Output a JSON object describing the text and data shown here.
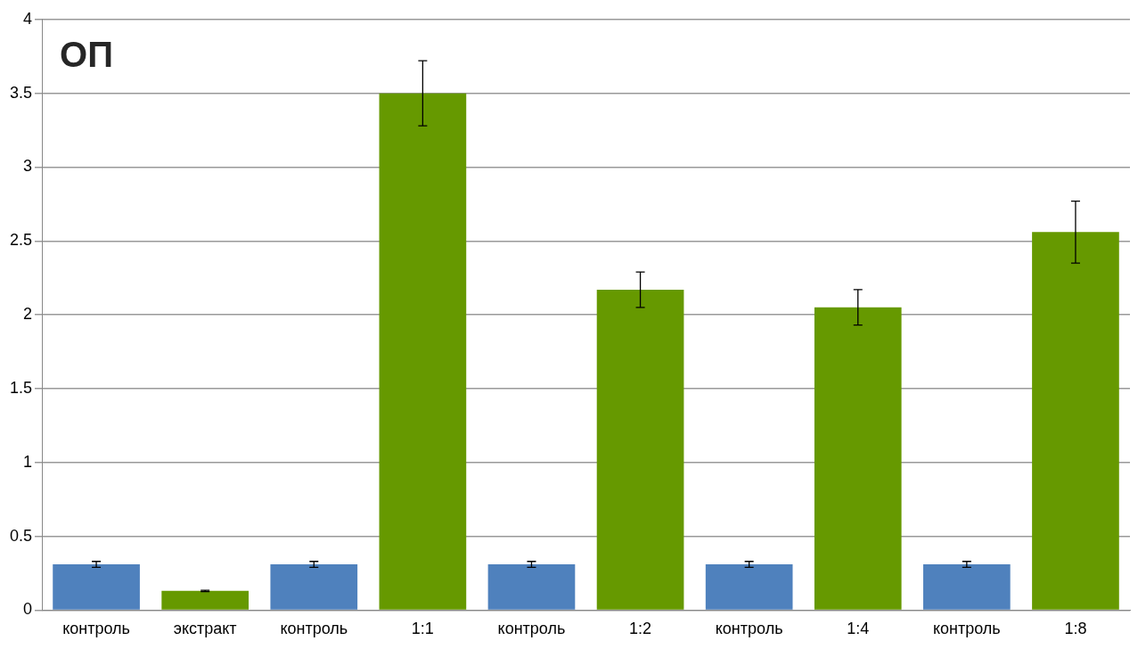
{
  "chart_data": {
    "type": "bar",
    "title": "ОП",
    "categories": [
      "контроль",
      "экстракт",
      "контроль",
      "1:1",
      "контроль",
      "1:2",
      "контроль",
      "1:4",
      "контроль",
      "1:8"
    ],
    "values": [
      0.31,
      0.13,
      0.31,
      3.5,
      0.31,
      2.17,
      0.31,
      2.05,
      0.31,
      2.56
    ],
    "errors": [
      0.02,
      0.005,
      0.02,
      0.22,
      0.02,
      0.12,
      0.02,
      0.12,
      0.02,
      0.21
    ],
    "colors": [
      "#4f81bd",
      "#669900",
      "#4f81bd",
      "#669900",
      "#4f81bd",
      "#669900",
      "#4f81bd",
      "#669900",
      "#4f81bd",
      "#669900"
    ],
    "ylim": [
      0,
      4
    ],
    "yticks": [
      0,
      0.5,
      1,
      1.5,
      2,
      2.5,
      3,
      3.5,
      4
    ],
    "grid": "y",
    "legend": false
  }
}
